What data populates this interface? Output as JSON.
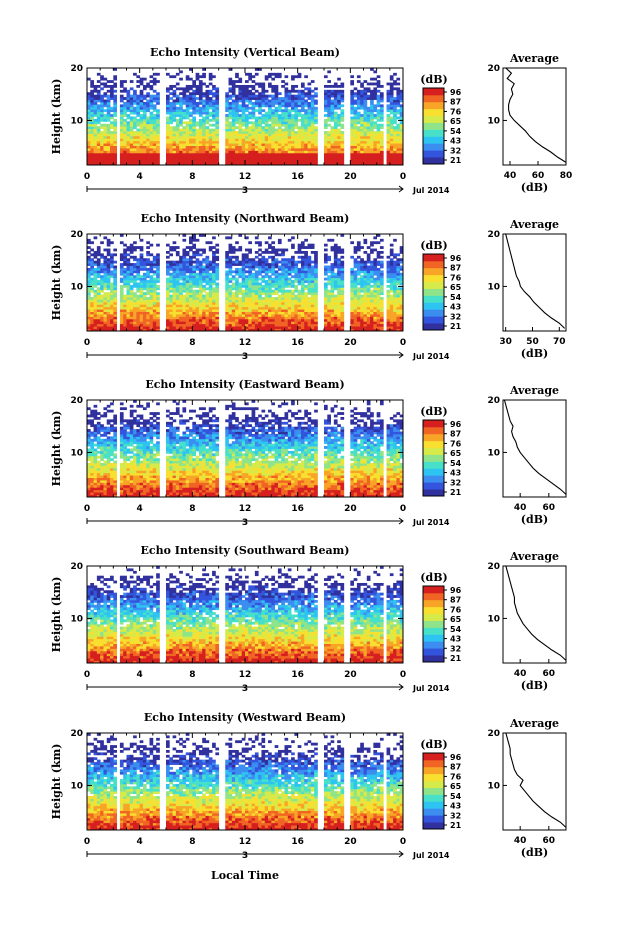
{
  "figure": {
    "xlabel": "Local Time",
    "date_label": "Jul 2014",
    "day_label": "3",
    "colorbar_unit": "(dB)",
    "colorbar_ticks": [
      "96",
      "87",
      "76",
      "65",
      "54",
      "43",
      "32",
      "21"
    ],
    "colormap": [
      "#30309f",
      "#3355dd",
      "#3b8ef0",
      "#2ec4f2",
      "#47e0c8",
      "#8fe489",
      "#d6ea4a",
      "#f9df2f",
      "#f8a427",
      "#f06424",
      "#d61f1f"
    ]
  },
  "chart_data": [
    {
      "type": "heatmap",
      "title": "Echo Intensity (Vertical Beam)",
      "ylabel": "Height (km)",
      "xlim": [
        0,
        24
      ],
      "ylim": [
        1.5,
        20
      ],
      "xticks": [
        "0",
        "4",
        "8",
        "12",
        "16",
        "20",
        "0"
      ],
      "yticks": [
        "10",
        "20"
      ],
      "data_gaps_hours": [
        [
          2.2,
          2.6
        ],
        [
          5.6,
          6.1
        ],
        [
          10.0,
          10.6
        ],
        [
          17.5,
          18.0
        ],
        [
          19.5,
          19.9
        ],
        [
          22.4,
          22.8
        ]
      ],
      "profile": {
        "title": "Average",
        "xlabel": "(dB)",
        "xlim": [
          35,
          80
        ],
        "xticks": [
          "40",
          "60",
          "80"
        ],
        "yticks": [
          "10",
          "20"
        ],
        "heights_km": [
          2,
          3,
          4,
          5,
          6,
          7,
          8,
          9,
          10,
          11,
          12,
          13,
          14,
          15,
          16,
          17,
          18,
          19,
          20
        ],
        "values_db": [
          80,
          74,
          69,
          63,
          58,
          54,
          51,
          47,
          43,
          40,
          39,
          39,
          40,
          42,
          41,
          43,
          38,
          41,
          37
        ]
      }
    },
    {
      "type": "heatmap",
      "title": "Echo Intensity (Northward Beam)",
      "ylabel": "Height (km)",
      "xlim": [
        0,
        24
      ],
      "ylim": [
        1.5,
        20
      ],
      "xticks": [
        "0",
        "4",
        "8",
        "12",
        "16",
        "20",
        "0"
      ],
      "yticks": [
        "10",
        "20"
      ],
      "data_gaps_hours": [
        [
          2.2,
          2.6
        ],
        [
          5.6,
          6.1
        ],
        [
          10.0,
          10.6
        ],
        [
          17.5,
          18.0
        ],
        [
          19.5,
          19.9
        ],
        [
          22.4,
          22.8
        ]
      ],
      "profile": {
        "title": "Average",
        "xlabel": "(dB)",
        "xlim": [
          28,
          75
        ],
        "xticks": [
          "30",
          "50",
          "70"
        ],
        "yticks": [
          "10",
          "20"
        ],
        "heights_km": [
          2,
          3,
          4,
          5,
          6,
          7,
          8,
          9,
          10,
          11,
          12,
          13,
          14,
          15,
          16,
          17,
          18,
          19,
          20
        ],
        "values_db": [
          74,
          70,
          64,
          59,
          55,
          51,
          48,
          44,
          41,
          40,
          38,
          37,
          36,
          35,
          34,
          33,
          32,
          31,
          30
        ]
      }
    },
    {
      "type": "heatmap",
      "title": "Echo Intensity (Eastward Beam)",
      "ylabel": "Height (km)",
      "xlim": [
        0,
        24
      ],
      "ylim": [
        1.5,
        20
      ],
      "xticks": [
        "0",
        "4",
        "8",
        "12",
        "16",
        "20",
        "0"
      ],
      "yticks": [
        "10",
        "20"
      ],
      "data_gaps_hours": [
        [
          2.2,
          2.6
        ],
        [
          5.6,
          6.1
        ],
        [
          10.0,
          10.6
        ],
        [
          17.5,
          18.0
        ],
        [
          19.5,
          19.9
        ],
        [
          22.4,
          22.8
        ]
      ],
      "profile": {
        "title": "Average",
        "xlabel": "(dB)",
        "xlim": [
          28,
          72
        ],
        "xticks": [
          "40",
          "60"
        ],
        "yticks": [
          "10",
          "20"
        ],
        "heights_km": [
          2,
          3,
          4,
          5,
          6,
          7,
          8,
          9,
          10,
          11,
          12,
          13,
          14,
          15,
          16,
          17,
          18,
          19,
          20
        ],
        "values_db": [
          72,
          68,
          63,
          58,
          53,
          49,
          46,
          43,
          40,
          38,
          37,
          35,
          34,
          35,
          33,
          32,
          31,
          30,
          29
        ]
      }
    },
    {
      "type": "heatmap",
      "title": "Echo Intensity (Southward Beam)",
      "ylabel": "Height (km)",
      "xlim": [
        0,
        24
      ],
      "ylim": [
        1.5,
        20
      ],
      "xticks": [
        "0",
        "4",
        "8",
        "12",
        "16",
        "20",
        "0"
      ],
      "yticks": [
        "10",
        "20"
      ],
      "data_gaps_hours": [
        [
          2.2,
          2.6
        ],
        [
          5.6,
          6.1
        ],
        [
          10.0,
          10.6
        ],
        [
          17.5,
          18.0
        ],
        [
          19.5,
          19.9
        ],
        [
          22.4,
          22.8
        ]
      ],
      "profile": {
        "title": "Average",
        "xlabel": "(dB)",
        "xlim": [
          28,
          72
        ],
        "xticks": [
          "40",
          "60"
        ],
        "yticks": [
          "10",
          "20"
        ],
        "heights_km": [
          2,
          3,
          4,
          5,
          6,
          7,
          8,
          9,
          10,
          11,
          12,
          13,
          14,
          15,
          16,
          17,
          18,
          19,
          20
        ],
        "values_db": [
          72,
          68,
          62,
          57,
          52,
          48,
          45,
          42,
          40,
          38,
          37,
          36,
          36,
          35,
          34,
          33,
          32,
          31,
          30
        ]
      }
    },
    {
      "type": "heatmap",
      "title": "Echo Intensity (Westward Beam)",
      "ylabel": "Height (km)",
      "xlim": [
        0,
        24
      ],
      "ylim": [
        1.5,
        20
      ],
      "xticks": [
        "0",
        "4",
        "8",
        "12",
        "16",
        "20",
        "0"
      ],
      "yticks": [
        "10",
        "20"
      ],
      "data_gaps_hours": [
        [
          2.2,
          2.6
        ],
        [
          5.6,
          6.1
        ],
        [
          10.0,
          10.6
        ],
        [
          17.5,
          18.0
        ],
        [
          19.5,
          19.9
        ],
        [
          22.4,
          22.8
        ]
      ],
      "profile": {
        "title": "Average",
        "xlabel": "(dB)",
        "xlim": [
          28,
          72
        ],
        "xticks": [
          "40",
          "60"
        ],
        "yticks": [
          "10",
          "20"
        ],
        "heights_km": [
          2,
          3,
          4,
          5,
          6,
          7,
          8,
          9,
          10,
          11,
          12,
          13,
          14,
          15,
          16,
          17,
          18,
          19,
          20
        ],
        "values_db": [
          72,
          68,
          62,
          57,
          53,
          49,
          46,
          43,
          40,
          42,
          38,
          36,
          35,
          34,
          33,
          33,
          32,
          31,
          30
        ]
      }
    }
  ]
}
